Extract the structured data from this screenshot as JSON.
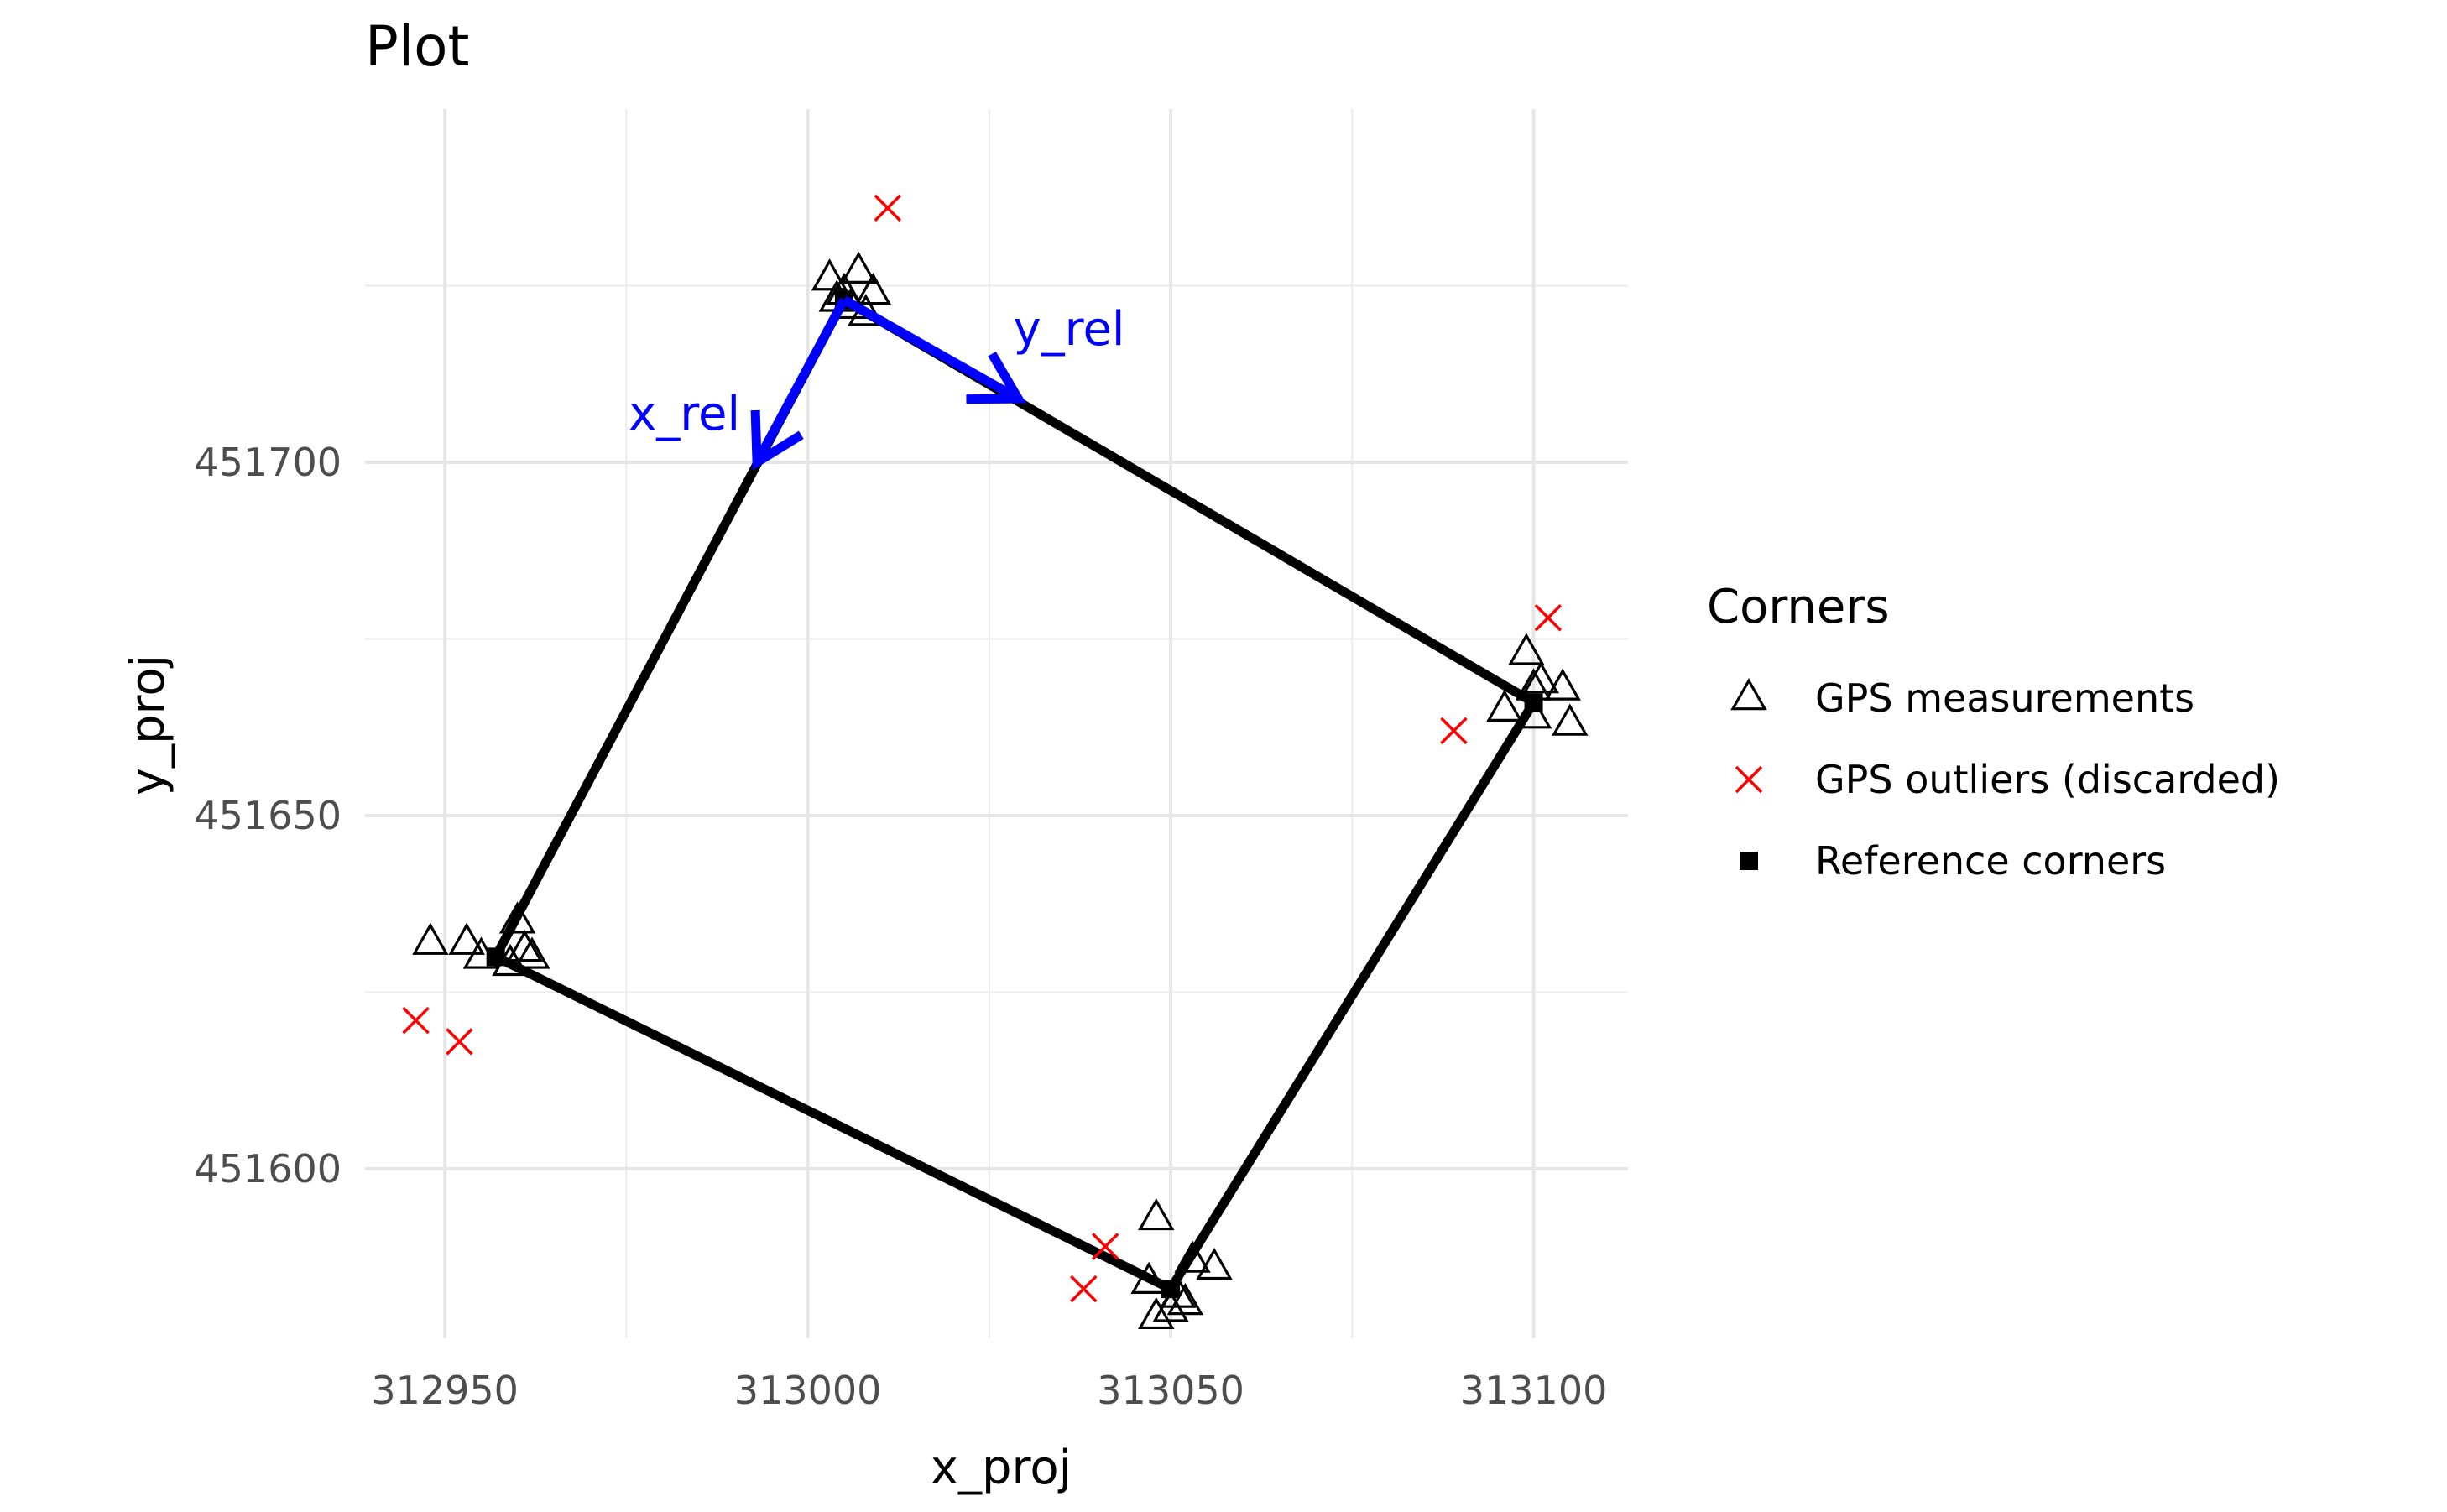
{
  "chart_data": {
    "type": "scatter",
    "title": "Plot",
    "xlabel": "x_proj",
    "ylabel": "y_proj",
    "xlim": [
      312939,
      313113
    ],
    "ylim": [
      451576,
      451750
    ],
    "x_ticks": [
      312950,
      313000,
      313050,
      313100
    ],
    "x_minor": [
      312975,
      313025,
      313075
    ],
    "y_ticks": [
      451600,
      451650,
      451700
    ],
    "y_minor": [
      451625,
      451675,
      451725
    ],
    "grid": true,
    "legend": {
      "title": "Corners",
      "position": "right",
      "entries": [
        {
          "label": "GPS measurements",
          "marker": "triangle-open",
          "color": "#000000"
        },
        {
          "label": "GPS outliers (discarded)",
          "marker": "cross",
          "color": "#ff0000"
        },
        {
          "label": "Reference corners",
          "marker": "square-filled",
          "color": "#000000"
        }
      ]
    },
    "series": [
      {
        "name": "GPS measurements",
        "marker": "triangle-open",
        "color": "#000000",
        "points": [
          [
            313003,
            451726
          ],
          [
            313004,
            451723
          ],
          [
            313005,
            451724
          ],
          [
            313007,
            451727
          ],
          [
            313008,
            451721
          ],
          [
            313009,
            451724
          ],
          [
            313006,
            451722
          ],
          [
            312948,
            451632
          ],
          [
            312953,
            451632
          ],
          [
            312955,
            451630
          ],
          [
            312959,
            451629
          ],
          [
            312960,
            451635
          ],
          [
            312961,
            451631
          ],
          [
            312962,
            451630
          ],
          [
            313048,
            451593
          ],
          [
            313047,
            451584
          ],
          [
            313048,
            451579
          ],
          [
            313050,
            451580
          ],
          [
            313052,
            451581
          ],
          [
            313053,
            451587
          ],
          [
            313056,
            451586
          ],
          [
            313051,
            451582
          ],
          [
            313099,
            451673
          ],
          [
            313100,
            451668
          ],
          [
            313101,
            451669
          ],
          [
            313104,
            451668
          ],
          [
            313096,
            451665
          ],
          [
            313100,
            451664
          ],
          [
            313105,
            451663
          ]
        ]
      },
      {
        "name": "GPS outliers (discarded)",
        "marker": "cross",
        "color": "#ff0000",
        "points": [
          [
            313011,
            451736
          ],
          [
            312946,
            451621
          ],
          [
            312952,
            451618
          ],
          [
            313041,
            451589
          ],
          [
            313038,
            451583
          ],
          [
            313089,
            451662
          ],
          [
            313102,
            451678
          ]
        ]
      },
      {
        "name": "Reference corners",
        "marker": "square-filled",
        "color": "#000000",
        "points": [
          [
            313005,
            451723
          ],
          [
            312957,
            451630
          ],
          [
            313050,
            451583
          ],
          [
            313100,
            451666
          ]
        ]
      }
    ],
    "polygon": [
      [
        313005,
        451723
      ],
      [
        313100,
        451666
      ],
      [
        313050,
        451583
      ],
      [
        312957,
        451630
      ]
    ],
    "annotations": [
      {
        "text": "x_rel",
        "color": "#0000ff",
        "arrow_from": [
          313005,
          451723
        ],
        "arrow_to": [
          312993,
          451700
        ],
        "label_at": [
          312983,
          451707
        ]
      },
      {
        "text": "y_rel",
        "color": "#0000ff",
        "arrow_from": [
          313005,
          451723
        ],
        "arrow_to": [
          313029,
          451709
        ],
        "label_at": [
          313036,
          451719
        ]
      }
    ]
  }
}
